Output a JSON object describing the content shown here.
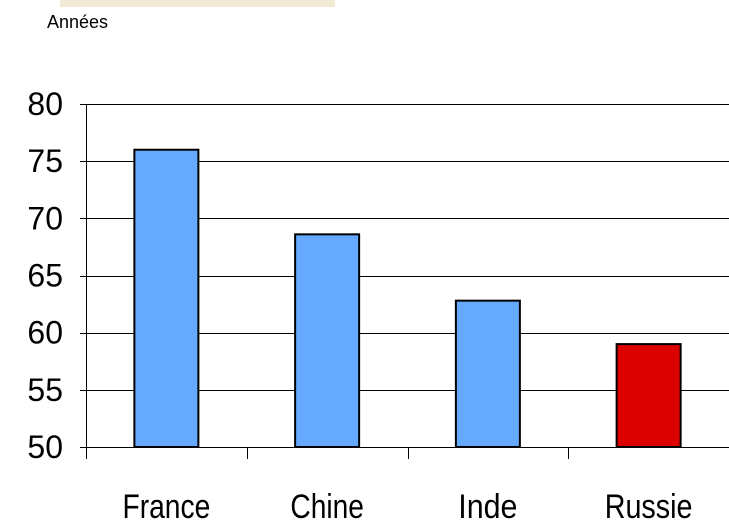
{
  "colors": {
    "header_strip": "#f3ead6",
    "bar_default": "#66aaff",
    "bar_highlight": "#dd0000"
  },
  "chart_data": {
    "type": "bar",
    "title": "",
    "xlabel": "",
    "ylabel": "Années",
    "ylim": [
      50,
      80
    ],
    "yticks": [
      50,
      55,
      60,
      65,
      70,
      75,
      80
    ],
    "categories": [
      "France",
      "Chine",
      "Inde",
      "Russie"
    ],
    "values": [
      76,
      68.6,
      62.8,
      59
    ],
    "bar_colors": [
      "#66aaff",
      "#66aaff",
      "#66aaff",
      "#dd0000"
    ],
    "grid": true,
    "legend": "none"
  }
}
